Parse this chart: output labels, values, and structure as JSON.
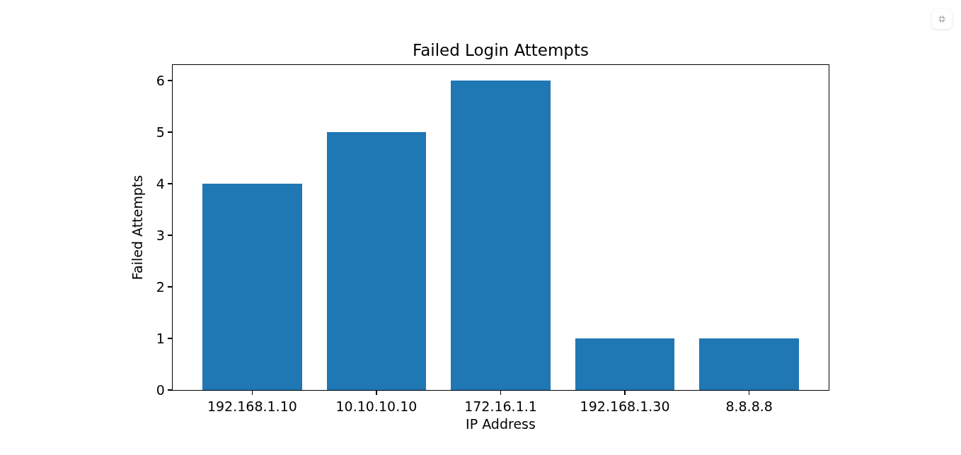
{
  "chart_data": {
    "type": "bar",
    "title": "Failed Login Attempts",
    "xlabel": "IP Address",
    "ylabel": "Failed Attempts",
    "categories": [
      "192.168.1.10",
      "10.10.10.10",
      "172.16.1.1",
      "192.168.1.30",
      "8.8.8.8"
    ],
    "values": [
      4,
      5,
      6,
      1,
      1
    ],
    "color": "#1f77b4",
    "ylim": [
      0,
      6.3
    ],
    "yticks": [
      0,
      1,
      2,
      3,
      4,
      5,
      6
    ]
  }
}
